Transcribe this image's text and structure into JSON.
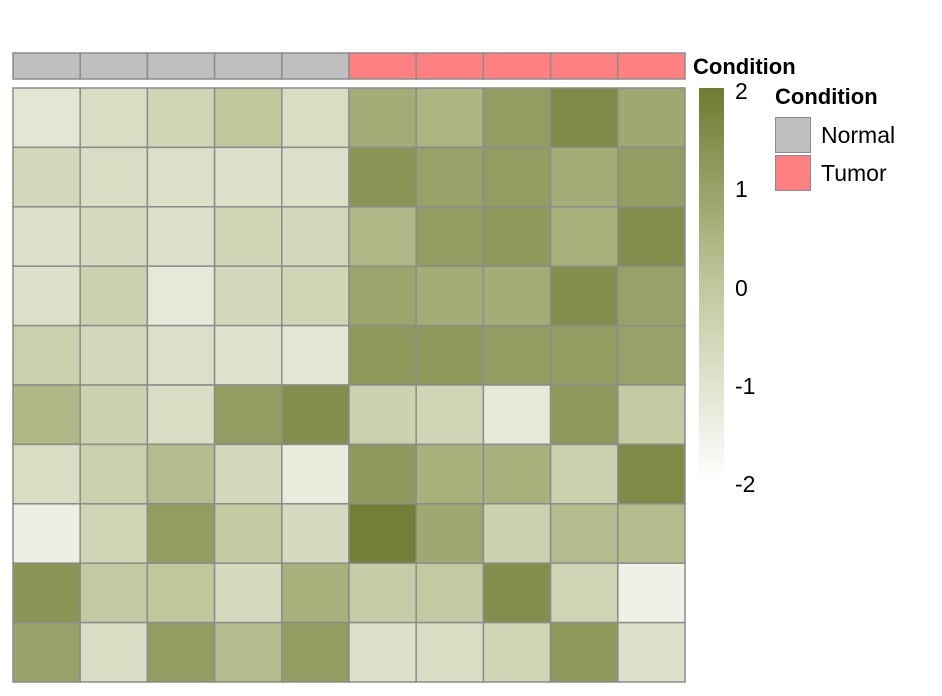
{
  "annotation": {
    "title": "Condition",
    "conditions": [
      "Normal",
      "Normal",
      "Normal",
      "Normal",
      "Normal",
      "Tumor",
      "Tumor",
      "Tumor",
      "Tumor",
      "Tumor"
    ],
    "colors": {
      "Normal": "#bfbfbf",
      "Tumor": "#ff8080"
    }
  },
  "legend": {
    "title": "Condition",
    "items": [
      {
        "label": "Normal",
        "color": "#bfbfbf"
      },
      {
        "label": "Tumor",
        "color": "#ff8080"
      }
    ]
  },
  "colorbar": {
    "ticks": [
      "2",
      "1",
      "0",
      "-1",
      "-2"
    ],
    "low_color": "#ffffff",
    "mid_color": "#c2c69c",
    "high_color": "#6e7b31"
  },
  "chart_data": {
    "type": "heatmap",
    "rows": 10,
    "cols": 10,
    "zlim": [
      -2,
      2
    ],
    "values": [
      [
        -1.1,
        -0.8,
        -0.5,
        0.0,
        -0.8,
        0.7,
        0.5,
        1.1,
        1.6,
        0.8
      ],
      [
        -0.6,
        -0.8,
        -0.9,
        -0.9,
        -0.9,
        1.3,
        1.0,
        1.1,
        0.7,
        1.1
      ],
      [
        -0.9,
        -0.7,
        -0.9,
        -0.5,
        -0.6,
        0.4,
        1.1,
        1.2,
        0.6,
        1.5
      ],
      [
        -0.9,
        -0.4,
        -1.2,
        -0.6,
        -0.5,
        0.9,
        0.7,
        0.7,
        1.5,
        1.0
      ],
      [
        -0.3,
        -0.6,
        -0.9,
        -1.0,
        -1.1,
        1.2,
        1.2,
        1.1,
        1.1,
        1.0
      ],
      [
        0.4,
        -0.4,
        -0.8,
        1.1,
        1.5,
        -0.4,
        -0.5,
        -1.2,
        1.2,
        -0.1
      ],
      [
        -0.8,
        -0.3,
        0.3,
        -0.6,
        -1.3,
        1.2,
        0.6,
        0.6,
        -0.3,
        1.6
      ],
      [
        -1.4,
        -0.5,
        1.1,
        -0.1,
        -0.7,
        1.9,
        0.8,
        -0.4,
        0.3,
        0.3
      ],
      [
        1.3,
        -0.1,
        0.0,
        -0.7,
        0.6,
        -0.2,
        -0.1,
        1.5,
        -0.5,
        -1.5
      ],
      [
        1.0,
        -0.8,
        1.1,
        0.3,
        1.1,
        -0.9,
        -0.8,
        -0.5,
        1.2,
        -0.9
      ]
    ]
  }
}
